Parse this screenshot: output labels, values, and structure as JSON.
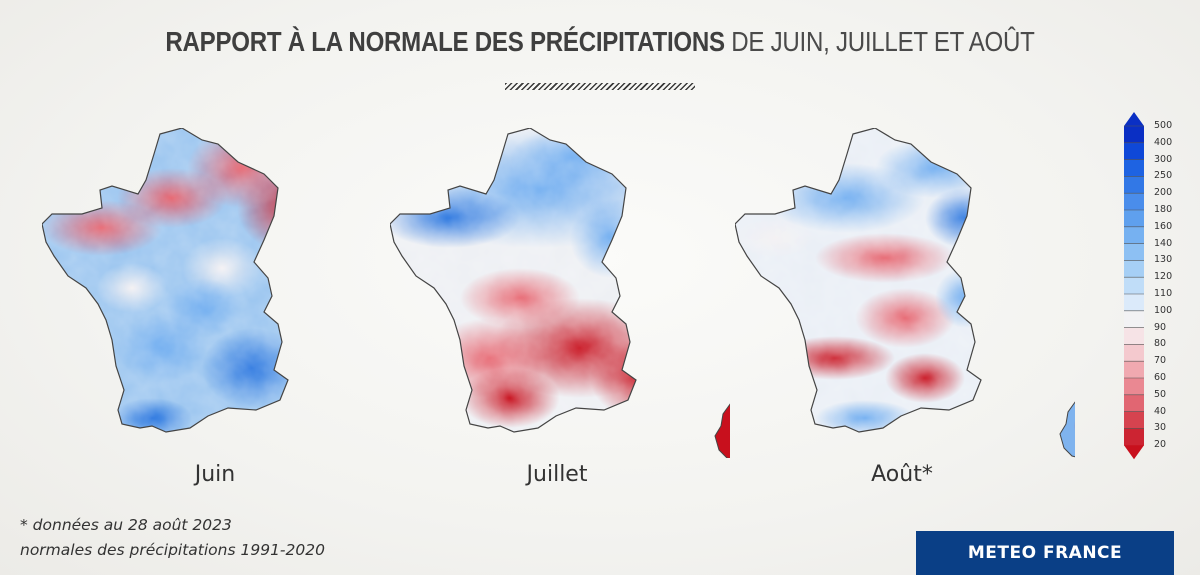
{
  "title": {
    "bold": "RAPPORT À LA NORMALE DES PRÉCIPITATIONS",
    "light": "DE JUIN, JUILLET ET AOÛT"
  },
  "maps": [
    {
      "label": "Juin",
      "dominant": "wet-south-dry-northeast"
    },
    {
      "label": "Juillet",
      "dominant": "wet-north-dry-south"
    },
    {
      "label": "Août*",
      "dominant": "mixed"
    }
  ],
  "legend": {
    "ticks": [
      "500",
      "400",
      "300",
      "250",
      "200",
      "180",
      "160",
      "140",
      "130",
      "120",
      "110",
      "100",
      "90",
      "80",
      "70",
      "60",
      "50",
      "40",
      "30",
      "20"
    ],
    "colors": {
      "wettest": "#0a3fd6",
      "wet": "#5aa2ec",
      "normal": "#eef3f8",
      "dry": "#f0a3aa",
      "driest": "#c8101d"
    }
  },
  "footnote": {
    "line1": "* données au 28 août 2023",
    "line2": "normales des précipitations 1991-2020"
  },
  "brand": "METEO FRANCE"
}
